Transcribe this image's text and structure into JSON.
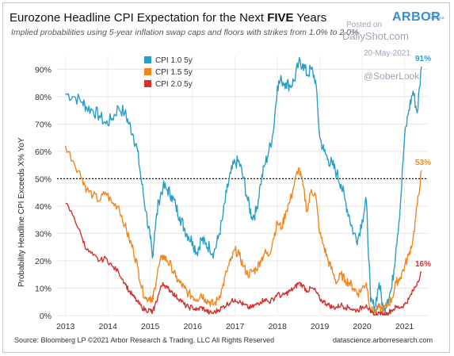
{
  "chart_data": {
    "type": "line",
    "title_prefix": "Eurozone Headline CPI Expectation for the Next ",
    "title_strong": "FIVE",
    "title_suffix": " Years",
    "subtitle": "Implied probabilities using 5-year inflation swap caps and floors with strikes from 1.0% to 2.0%",
    "ylabel": "Probability Headline CPI Exceeds X% YoY",
    "x_ticks": [
      "2013",
      "2014",
      "2015",
      "2016",
      "2017",
      "2018",
      "2019",
      "2020",
      "2021"
    ],
    "y_ticks": [
      "0%",
      "10%",
      "20%",
      "30%",
      "40%",
      "50%",
      "60%",
      "70%",
      "80%",
      "90%"
    ],
    "xlim": [
      2012.8,
      2021.55
    ],
    "ylim": [
      0,
      95
    ],
    "reference_line": 50,
    "legend_position": "top-left",
    "series": [
      {
        "name": "CPI 1.0 5y",
        "color": "#2a9fc6",
        "end_label": "91%",
        "points": [
          [
            2013.0,
            81
          ],
          [
            2013.2,
            80
          ],
          [
            2013.4,
            78
          ],
          [
            2013.5,
            76
          ],
          [
            2013.65,
            75
          ],
          [
            2013.8,
            73
          ],
          [
            2013.95,
            70
          ],
          [
            2014.1,
            72
          ],
          [
            2014.25,
            76
          ],
          [
            2014.4,
            74
          ],
          [
            2014.5,
            70
          ],
          [
            2014.6,
            66
          ],
          [
            2014.7,
            60
          ],
          [
            2014.8,
            48
          ],
          [
            2014.9,
            38
          ],
          [
            2015.0,
            28
          ],
          [
            2015.05,
            21
          ],
          [
            2015.1,
            30
          ],
          [
            2015.2,
            42
          ],
          [
            2015.3,
            47
          ],
          [
            2015.4,
            46
          ],
          [
            2015.5,
            44
          ],
          [
            2015.6,
            40
          ],
          [
            2015.7,
            36
          ],
          [
            2015.8,
            32
          ],
          [
            2015.9,
            29
          ],
          [
            2016.0,
            27
          ],
          [
            2016.1,
            23
          ],
          [
            2016.2,
            28
          ],
          [
            2016.3,
            26
          ],
          [
            2016.4,
            25
          ],
          [
            2016.5,
            23
          ],
          [
            2016.6,
            28
          ],
          [
            2016.7,
            35
          ],
          [
            2016.8,
            45
          ],
          [
            2016.9,
            52
          ],
          [
            2017.0,
            56
          ],
          [
            2017.1,
            56
          ],
          [
            2017.2,
            50
          ],
          [
            2017.3,
            42
          ],
          [
            2017.4,
            36
          ],
          [
            2017.5,
            38
          ],
          [
            2017.6,
            48
          ],
          [
            2017.7,
            55
          ],
          [
            2017.8,
            60
          ],
          [
            2017.9,
            67
          ],
          [
            2018.0,
            84
          ],
          [
            2018.1,
            86
          ],
          [
            2018.2,
            85
          ],
          [
            2018.3,
            84
          ],
          [
            2018.4,
            86
          ],
          [
            2018.5,
            92
          ],
          [
            2018.6,
            92
          ],
          [
            2018.7,
            88
          ],
          [
            2018.8,
            90
          ],
          [
            2018.9,
            86
          ],
          [
            2019.0,
            65
          ],
          [
            2019.1,
            60
          ],
          [
            2019.2,
            57
          ],
          [
            2019.3,
            55
          ],
          [
            2019.4,
            52
          ],
          [
            2019.5,
            48
          ],
          [
            2019.6,
            42
          ],
          [
            2019.7,
            36
          ],
          [
            2019.8,
            30
          ],
          [
            2019.9,
            28
          ],
          [
            2020.0,
            35
          ],
          [
            2020.1,
            42
          ],
          [
            2020.2,
            5
          ],
          [
            2020.3,
            3
          ],
          [
            2020.4,
            12
          ],
          [
            2020.5,
            2
          ],
          [
            2020.6,
            6
          ],
          [
            2020.7,
            10
          ],
          [
            2020.8,
            25
          ],
          [
            2020.9,
            40
          ],
          [
            2021.0,
            65
          ],
          [
            2021.1,
            75
          ],
          [
            2021.2,
            82
          ],
          [
            2021.3,
            74
          ],
          [
            2021.4,
            91
          ]
        ]
      },
      {
        "name": "CPI 1.5 5y",
        "color": "#f2861e",
        "end_label": "53%",
        "points": [
          [
            2013.0,
            62
          ],
          [
            2013.2,
            56
          ],
          [
            2013.4,
            50
          ],
          [
            2013.5,
            46
          ],
          [
            2013.65,
            44
          ],
          [
            2013.8,
            42
          ],
          [
            2013.95,
            45
          ],
          [
            2014.1,
            41
          ],
          [
            2014.25,
            40
          ],
          [
            2014.4,
            33
          ],
          [
            2014.5,
            28
          ],
          [
            2014.6,
            24
          ],
          [
            2014.7,
            18
          ],
          [
            2014.8,
            10
          ],
          [
            2014.9,
            6
          ],
          [
            2015.0,
            7
          ],
          [
            2015.05,
            5
          ],
          [
            2015.1,
            10
          ],
          [
            2015.2,
            18
          ],
          [
            2015.3,
            22
          ],
          [
            2015.4,
            20
          ],
          [
            2015.5,
            18
          ],
          [
            2015.6,
            14
          ],
          [
            2015.7,
            12
          ],
          [
            2015.8,
            10
          ],
          [
            2015.9,
            8
          ],
          [
            2016.0,
            7
          ],
          [
            2016.1,
            6
          ],
          [
            2016.2,
            8
          ],
          [
            2016.3,
            6
          ],
          [
            2016.4,
            5
          ],
          [
            2016.5,
            4
          ],
          [
            2016.6,
            6
          ],
          [
            2016.7,
            10
          ],
          [
            2016.8,
            16
          ],
          [
            2016.9,
            20
          ],
          [
            2017.0,
            24
          ],
          [
            2017.1,
            22
          ],
          [
            2017.2,
            18
          ],
          [
            2017.3,
            15
          ],
          [
            2017.4,
            16
          ],
          [
            2017.5,
            17
          ],
          [
            2017.6,
            20
          ],
          [
            2017.7,
            23
          ],
          [
            2017.8,
            22
          ],
          [
            2017.9,
            28
          ],
          [
            2018.0,
            34
          ],
          [
            2018.1,
            32
          ],
          [
            2018.2,
            38
          ],
          [
            2018.3,
            42
          ],
          [
            2018.4,
            48
          ],
          [
            2018.5,
            54
          ],
          [
            2018.6,
            48
          ],
          [
            2018.7,
            38
          ],
          [
            2018.8,
            46
          ],
          [
            2018.9,
            44
          ],
          [
            2019.0,
            30
          ],
          [
            2019.1,
            25
          ],
          [
            2019.2,
            20
          ],
          [
            2019.3,
            16
          ],
          [
            2019.4,
            12
          ],
          [
            2019.5,
            15
          ],
          [
            2019.6,
            13
          ],
          [
            2019.7,
            12
          ],
          [
            2019.8,
            10
          ],
          [
            2019.9,
            8
          ],
          [
            2020.0,
            10
          ],
          [
            2020.1,
            12
          ],
          [
            2020.2,
            2
          ],
          [
            2020.3,
            1
          ],
          [
            2020.4,
            3
          ],
          [
            2020.5,
            2
          ],
          [
            2020.6,
            4
          ],
          [
            2020.7,
            6
          ],
          [
            2020.8,
            12
          ],
          [
            2020.9,
            14
          ],
          [
            2021.0,
            18
          ],
          [
            2021.1,
            22
          ],
          [
            2021.2,
            28
          ],
          [
            2021.3,
            40
          ],
          [
            2021.4,
            53
          ]
        ]
      },
      {
        "name": "CPI 2.0 5y",
        "color": "#d3322f",
        "end_label": "16%",
        "points": [
          [
            2013.0,
            41
          ],
          [
            2013.2,
            36
          ],
          [
            2013.4,
            28
          ],
          [
            2013.5,
            24
          ],
          [
            2013.65,
            22
          ],
          [
            2013.8,
            20
          ],
          [
            2013.95,
            21
          ],
          [
            2014.1,
            18
          ],
          [
            2014.25,
            16
          ],
          [
            2014.4,
            12
          ],
          [
            2014.5,
            9
          ],
          [
            2014.6,
            7
          ],
          [
            2014.7,
            5
          ],
          [
            2014.8,
            3
          ],
          [
            2014.9,
            2
          ],
          [
            2015.0,
            2
          ],
          [
            2015.05,
            1
          ],
          [
            2015.1,
            3
          ],
          [
            2015.2,
            8
          ],
          [
            2015.3,
            12
          ],
          [
            2015.4,
            10
          ],
          [
            2015.5,
            9
          ],
          [
            2015.6,
            7
          ],
          [
            2015.7,
            6
          ],
          [
            2015.8,
            4
          ],
          [
            2015.9,
            3
          ],
          [
            2016.0,
            3
          ],
          [
            2016.1,
            2
          ],
          [
            2016.2,
            3
          ],
          [
            2016.3,
            2
          ],
          [
            2016.4,
            1
          ],
          [
            2016.5,
            1
          ],
          [
            2016.6,
            2
          ],
          [
            2016.7,
            3
          ],
          [
            2016.8,
            4
          ],
          [
            2016.9,
            5
          ],
          [
            2017.0,
            6
          ],
          [
            2017.1,
            5
          ],
          [
            2017.2,
            4
          ],
          [
            2017.3,
            3
          ],
          [
            2017.4,
            3
          ],
          [
            2017.5,
            4
          ],
          [
            2017.6,
            5
          ],
          [
            2017.7,
            6
          ],
          [
            2017.8,
            5
          ],
          [
            2017.9,
            6
          ],
          [
            2018.0,
            8
          ],
          [
            2018.1,
            7
          ],
          [
            2018.2,
            8
          ],
          [
            2018.3,
            9
          ],
          [
            2018.4,
            10
          ],
          [
            2018.5,
            12
          ],
          [
            2018.6,
            11
          ],
          [
            2018.7,
            9
          ],
          [
            2018.8,
            10
          ],
          [
            2018.9,
            9
          ],
          [
            2019.0,
            6
          ],
          [
            2019.1,
            5
          ],
          [
            2019.2,
            4
          ],
          [
            2019.3,
            3
          ],
          [
            2019.4,
            3
          ],
          [
            2019.5,
            4
          ],
          [
            2019.6,
            3
          ],
          [
            2019.7,
            3
          ],
          [
            2019.8,
            2
          ],
          [
            2019.9,
            2
          ],
          [
            2020.0,
            3
          ],
          [
            2020.1,
            4
          ],
          [
            2020.2,
            1
          ],
          [
            2020.3,
            0
          ],
          [
            2020.4,
            1
          ],
          [
            2020.5,
            0
          ],
          [
            2020.6,
            1
          ],
          [
            2020.7,
            2
          ],
          [
            2020.8,
            3
          ],
          [
            2020.9,
            3
          ],
          [
            2021.0,
            4
          ],
          [
            2021.1,
            6
          ],
          [
            2021.2,
            9
          ],
          [
            2021.3,
            12
          ],
          [
            2021.4,
            16
          ]
        ]
      }
    ]
  },
  "branding": {
    "logo_text": "ARBOR",
    "logo_sub": "DATA SCIENCE"
  },
  "watermark": {
    "line1": "Posted on",
    "line2": "DailyShot.com",
    "line3": "20-May-2021",
    "line4": "@SoberLook"
  },
  "footer": {
    "source": "Source: Bloomberg LP  ©2021 Arbor Research & Trading, LLC  All Rights Reserved",
    "site": "datascience.arborresearch.com"
  }
}
